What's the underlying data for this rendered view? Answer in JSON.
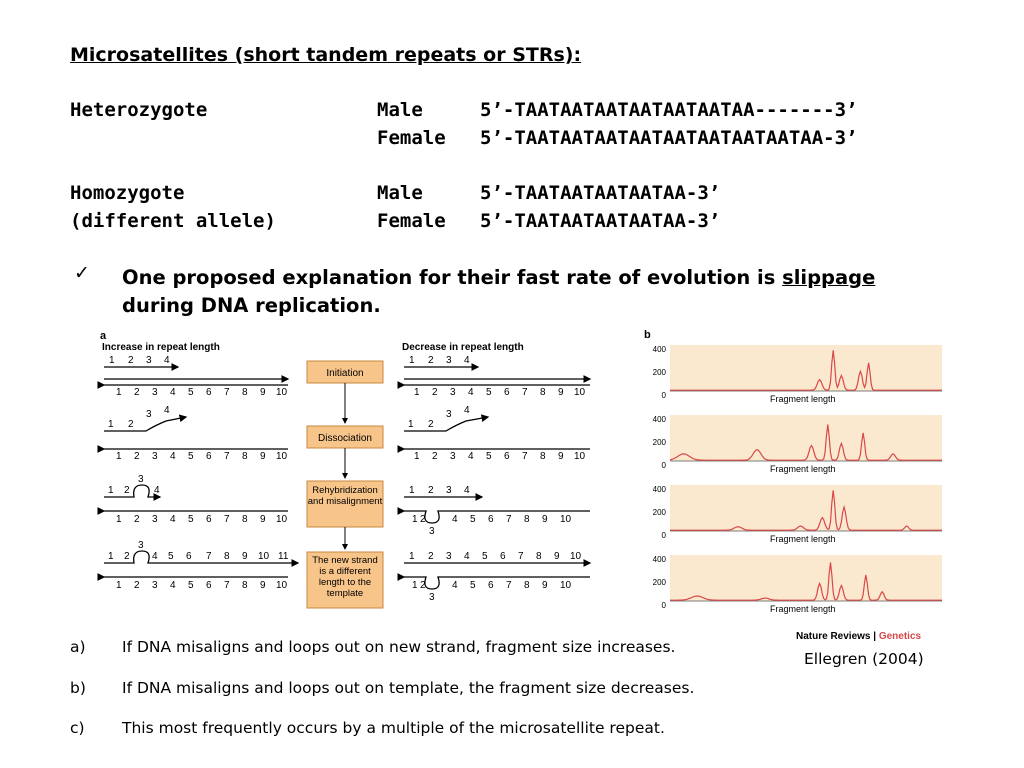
{
  "title": "Microsatellites (short tandem repeats or STRs):",
  "sequences": [
    {
      "label": "Heterozygote",
      "sex": "Male",
      "seq": "5’-TAATAATAATAATAATAATAA-------3’"
    },
    {
      "label": "",
      "sex": "Female",
      "seq": "5’-TAATAATAATAATAATAATAATAATAA-3’"
    },
    {
      "label": "Homozygote",
      "sex": "Male",
      "seq": "5’-TAATAATAATAATAA-3’"
    },
    {
      "label": "(different allele)",
      "sex": "Female",
      "seq": "5’-TAATAATAATAATAA-3’"
    }
  ],
  "bullet": {
    "check": "✓",
    "text_before": "One proposed explanation for their fast rate of evolution is ",
    "underlined": "slippage",
    "text_after": " during DNA replication."
  },
  "figure_a": {
    "panel_label": "a",
    "left_heading": "Increase in repeat length",
    "right_heading": "Decrease in repeat length",
    "steps": [
      "Initiation",
      "Dissociation",
      "Rehybridization and misalignment",
      "The new strand is a different length to the template"
    ],
    "template_numbers": [
      "1",
      "2",
      "3",
      "4",
      "5",
      "6",
      "7",
      "8",
      "9",
      "10"
    ],
    "extra_number": "11",
    "loop_number": "3"
  },
  "figure_b": {
    "panel_label": "b",
    "yticks": [
      "400",
      "200",
      "0"
    ],
    "xlabel": "Fragment length",
    "credit_journal": "Nature Reviews",
    "credit_sep": " | ",
    "credit_section": "Genetics",
    "line_color": "#d94848",
    "bg_color": "#fbe9cf"
  },
  "citation": "Ellegren (2004)",
  "notes": [
    {
      "letter": "a)",
      "text": "If DNA misaligns and loops out on new strand, fragment size increases."
    },
    {
      "letter": "b)",
      "text": "If DNA misaligns and loops out on template, the fragment size decreases."
    },
    {
      "letter": "c)",
      "text": "This most frequently occurs by a multiple of the microsatellite repeat."
    }
  ]
}
